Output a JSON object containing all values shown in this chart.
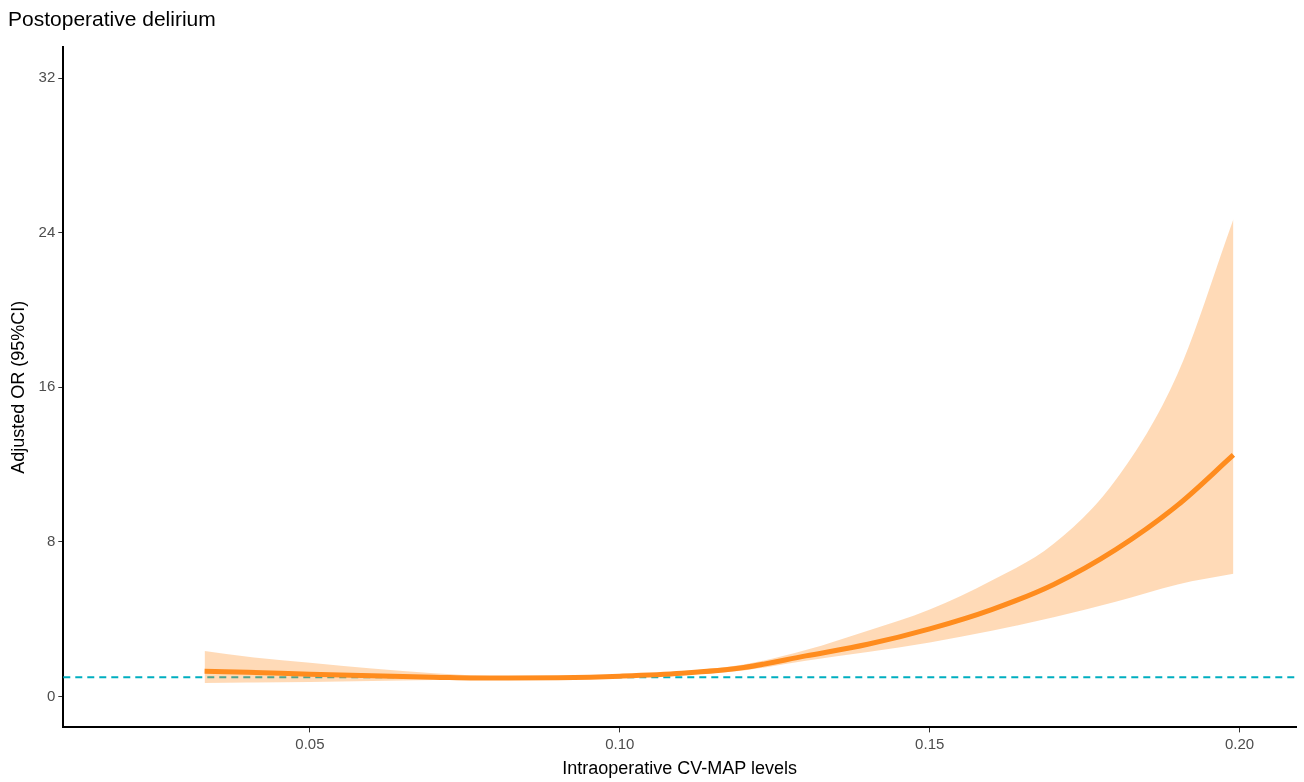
{
  "chart_data": {
    "type": "line",
    "title": "Postoperative delirium",
    "xlabel": "Intraoperative CV-MAP levels",
    "ylabel": "Adjusted OR (95%CI)",
    "x": [
      0.033,
      0.04,
      0.05,
      0.06,
      0.07,
      0.08,
      0.09,
      0.1,
      0.11,
      0.12,
      0.13,
      0.14,
      0.15,
      0.16,
      0.17,
      0.18,
      0.19,
      0.199
    ],
    "series": [
      {
        "color": "#ff8c1e",
        "values": [
          1.3,
          1.25,
          1.15,
          1.07,
          1.0,
          0.95,
          0.97,
          1.05,
          1.2,
          1.5,
          2.1,
          2.7,
          3.5,
          4.5,
          5.8,
          7.6,
          9.9,
          12.5
        ],
        "lower": [
          0.7,
          0.72,
          0.75,
          0.8,
          0.85,
          0.88,
          0.92,
          1.0,
          1.12,
          1.35,
          1.85,
          2.3,
          2.8,
          3.4,
          4.1,
          4.9,
          5.8,
          6.35
        ],
        "upper": [
          2.35,
          2.05,
          1.75,
          1.45,
          1.2,
          1.05,
          1.02,
          1.1,
          1.3,
          1.65,
          2.4,
          3.4,
          4.5,
          6.0,
          7.9,
          11.2,
          16.7,
          24.7
        ]
      }
    ],
    "ref_lines": [
      {
        "axis": "y",
        "value": 1,
        "color": "#00aec0",
        "line_style": "dashed"
      }
    ],
    "xlim": [
      0.0102,
      0.2091
    ],
    "xticks": [
      0.05,
      {
        "value": 0.1,
        "label": "0.10"
      },
      0.15,
      {
        "value": 0.2,
        "label": "0.20"
      }
    ],
    "ylim": [
      -1.6,
      33.6
    ],
    "yticks": [
      0,
      8,
      16,
      24,
      32
    ],
    "grid": false,
    "legend": false,
    "marker": "none",
    "line_style": "solid"
  }
}
